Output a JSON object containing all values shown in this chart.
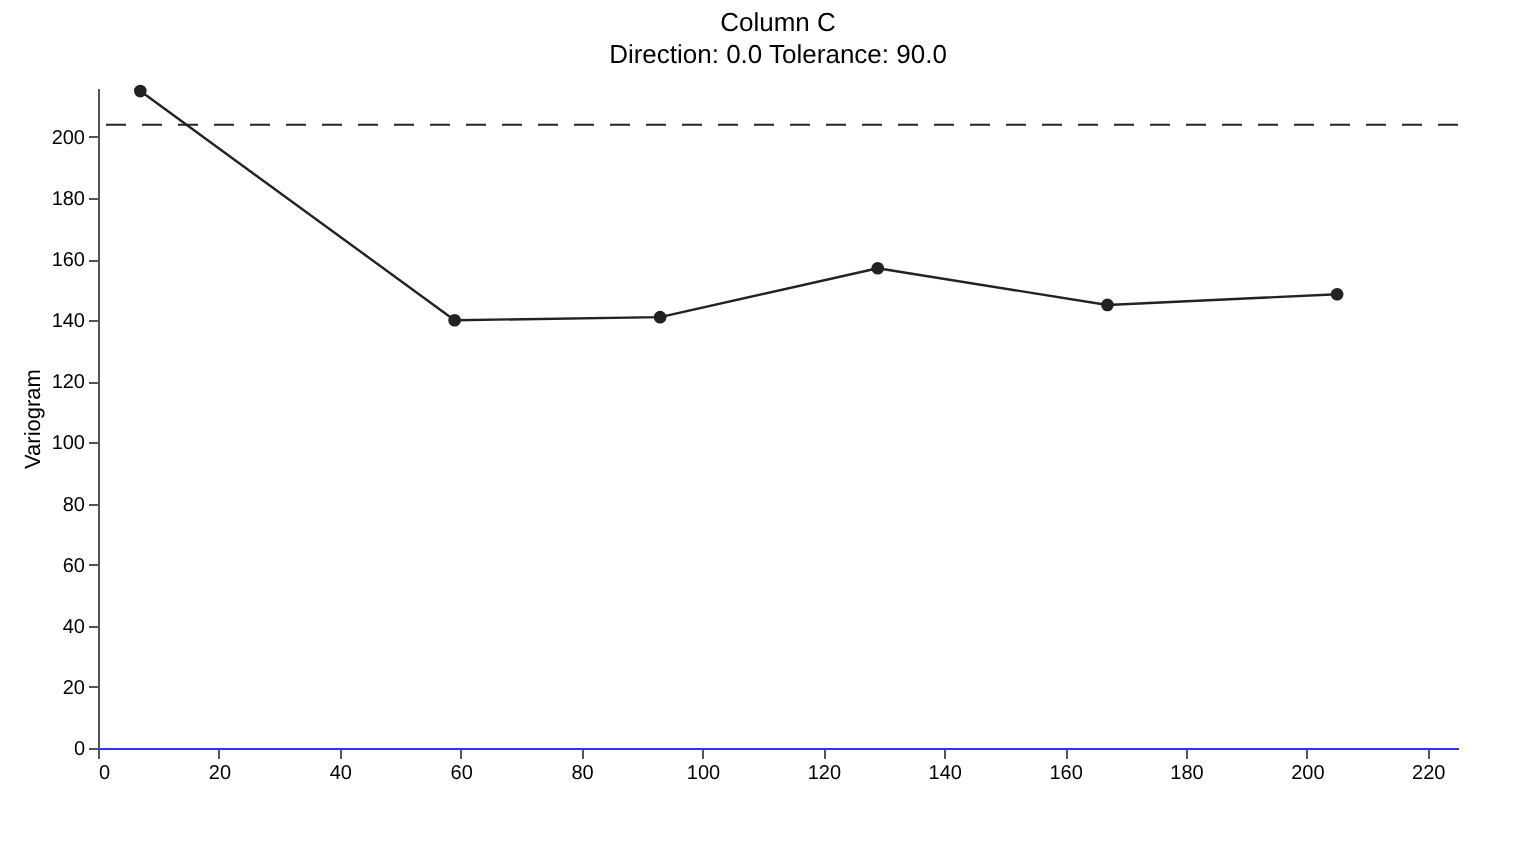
{
  "chart_data": {
    "type": "line",
    "title": "Column C",
    "subtitle": "Direction: 0.0    Tolerance: 90.0",
    "ylabel": "Variogram",
    "x": [
      7,
      59,
      93,
      129,
      167,
      205
    ],
    "series": [
      {
        "color": "#222222",
        "values": [
          215,
          140,
          141,
          157,
          145,
          148.5
        ]
      }
    ],
    "marker": "circle",
    "line_style": "solid",
    "grid": false,
    "legend": false,
    "xlim": [
      0,
      225
    ],
    "xticks": [
      0,
      20,
      40,
      60,
      80,
      100,
      120,
      140,
      160,
      180,
      200,
      220
    ],
    "ylim": [
      0,
      216
    ],
    "yticks": [
      0,
      20,
      40,
      60,
      80,
      100,
      120,
      140,
      160,
      180,
      200
    ],
    "ref_lines": [
      {
        "axis": "y",
        "value": 204,
        "line_style": "dashed",
        "color": "#222222"
      }
    ]
  }
}
